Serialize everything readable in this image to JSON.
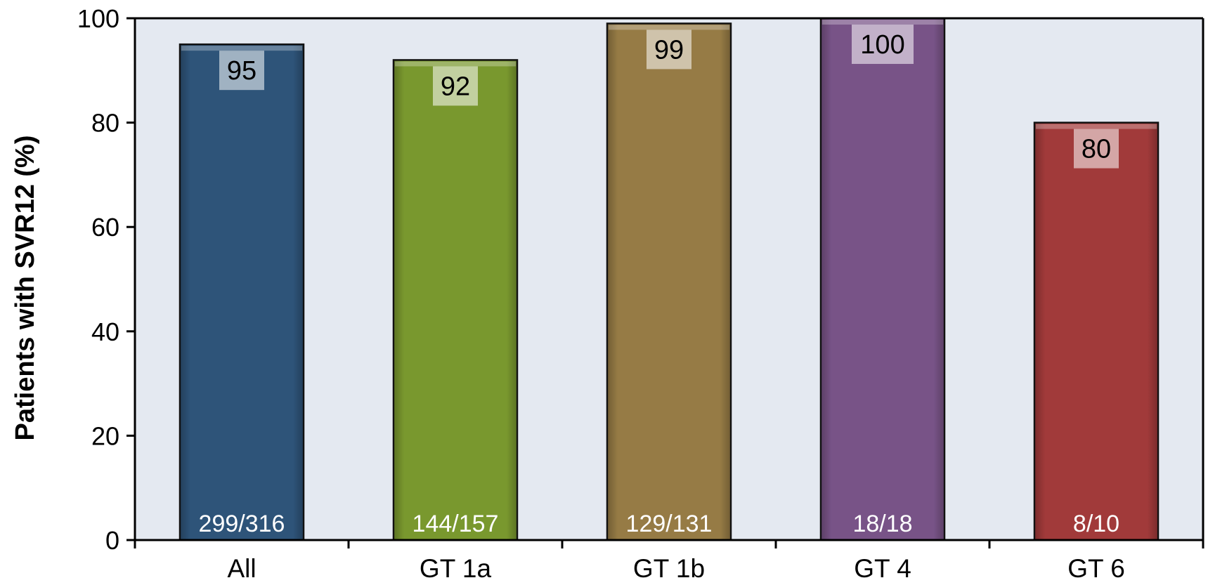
{
  "chart_data": {
    "type": "bar",
    "categories": [
      "All",
      "GT 1a",
      "GT 1b",
      "GT 4",
      "GT 6"
    ],
    "values": [
      95,
      92,
      99,
      100,
      80
    ],
    "value_labels": [
      "95",
      "92",
      "99",
      "100",
      "80"
    ],
    "count_labels": [
      "299/316",
      "144/157",
      "129/131",
      "18/18",
      "8/10"
    ],
    "bar_colors": [
      "#2e5479",
      "#79982e",
      "#967b45",
      "#785387",
      "#a13a3a"
    ],
    "title": "",
    "xlabel": "",
    "ylabel": "Patients with SVR12 (%)",
    "ylim": [
      0,
      100
    ],
    "yticks": [
      0,
      20,
      40,
      60,
      80,
      100
    ],
    "plot_background": "#e4e9f1",
    "grid": false,
    "legend": "none"
  }
}
